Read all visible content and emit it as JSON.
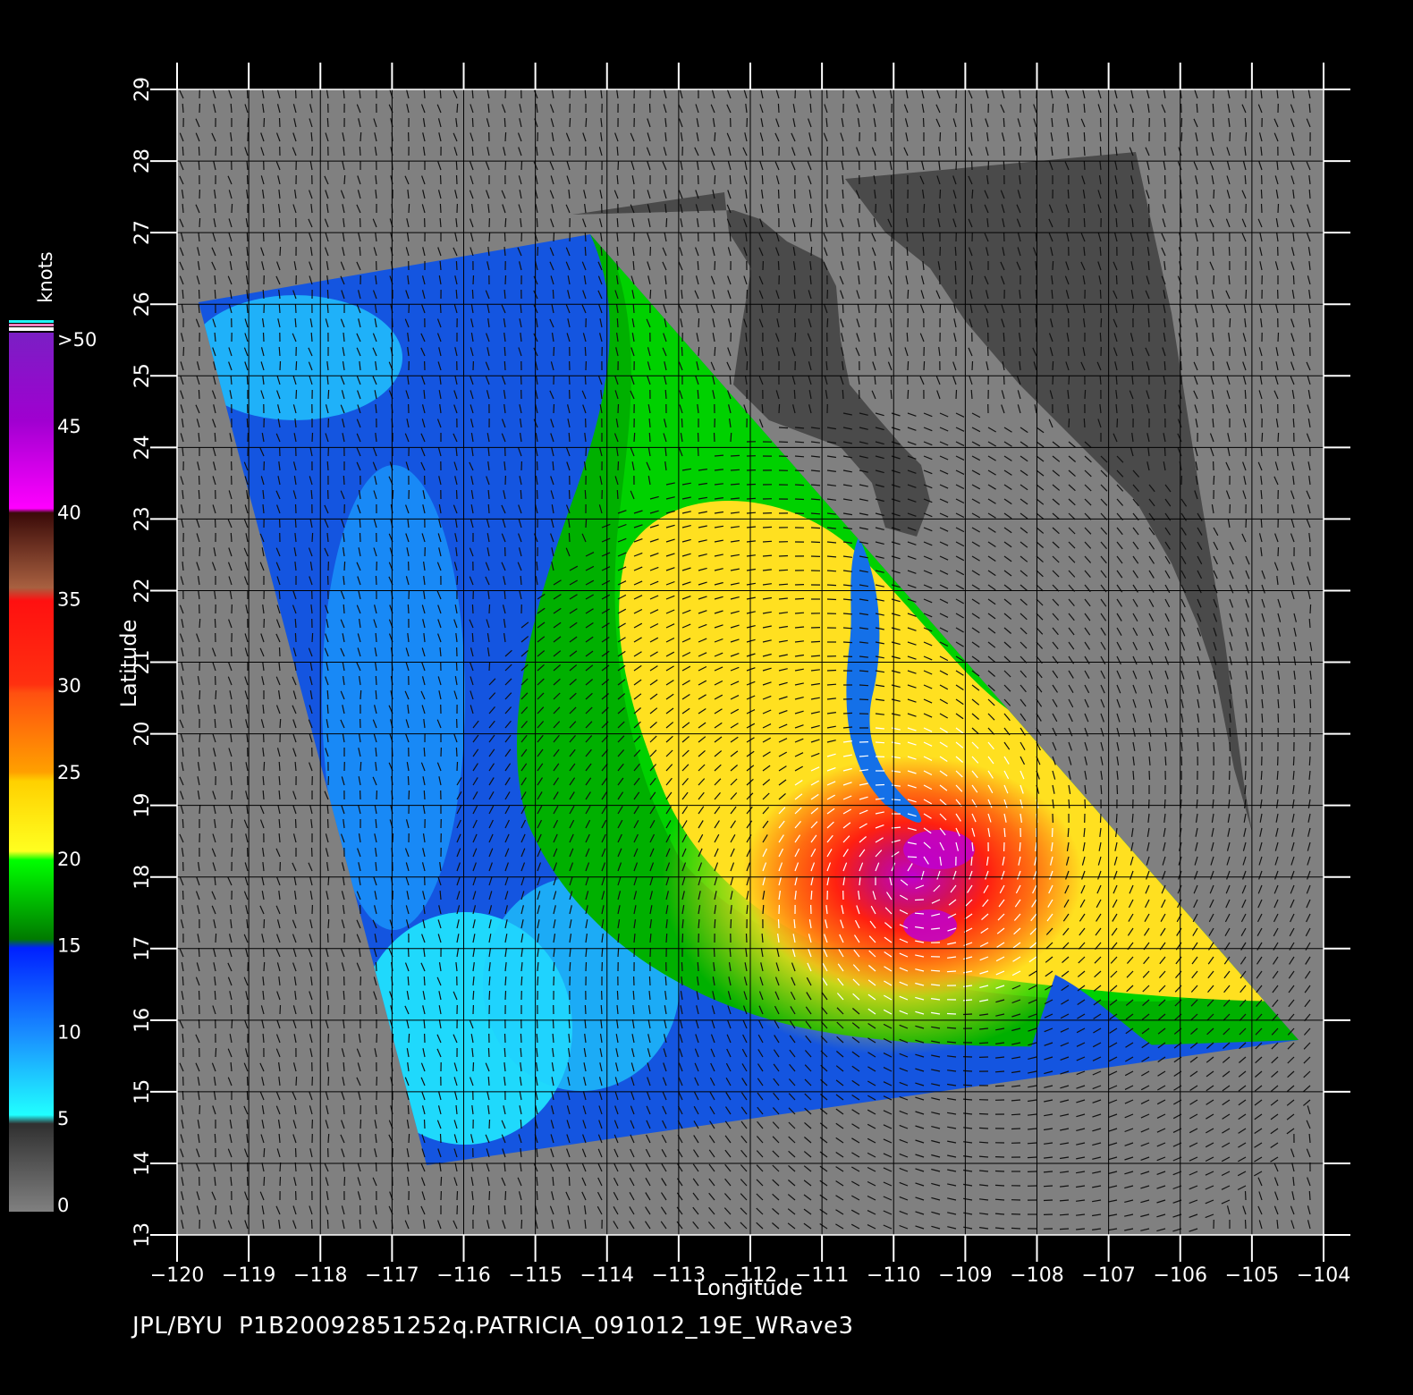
{
  "footer_text": "JPL/BYU  P1B20092851252q.PATRICIA_091012_19E_WRave3",
  "axes": {
    "x_title": "Longitude",
    "y_title": "Latitude",
    "x_ticks": [
      "−120",
      "−119",
      "−118",
      "−117",
      "−116",
      "−115",
      "−114",
      "−113",
      "−112",
      "−111",
      "−110",
      "−109",
      "−108",
      "−107",
      "−106",
      "−105",
      "−104"
    ],
    "y_ticks": [
      "13",
      "14",
      "15",
      "16",
      "17",
      "18",
      "19",
      "20",
      "21",
      "22",
      "23",
      "24",
      "25",
      "26",
      "27",
      "28",
      "29"
    ],
    "x_range": [
      -120,
      -104
    ],
    "y_range": [
      13,
      29
    ]
  },
  "legend": {
    "unit": "knots",
    "labels": [
      ">50",
      "45",
      "40",
      "35",
      "30",
      "25",
      "20",
      "15",
      "10",
      "5",
      "0"
    ],
    "colors": [
      "#7a1fc4",
      "#a000d0",
      "#ff00ff",
      "#5a1a10",
      "#c88050",
      "#ff1010",
      "#ff6010",
      "#ffc000",
      "#ffff20",
      "#00ff00",
      "#008000",
      "#0020ff",
      "#1a8cff",
      "#20ffff",
      "#303030",
      "#808080"
    ]
  },
  "colors": {
    "background": "#000000",
    "land": "#808080",
    "land_dark": "#4a4a4a",
    "grid": "#000000"
  }
}
